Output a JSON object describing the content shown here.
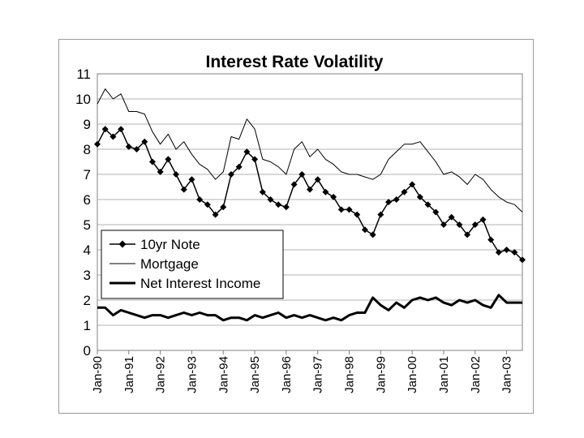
{
  "chart_data": {
    "type": "line",
    "title": "Interest Rate Volatility",
    "xlabel": "",
    "ylabel": "",
    "ylim": [
      0,
      11
    ],
    "yticks": [
      0,
      1,
      2,
      3,
      4,
      5,
      6,
      7,
      8,
      9,
      10,
      11
    ],
    "xlim": [
      1990.0,
      2003.5
    ],
    "xtick_labels": [
      "Jan-90",
      "Jan-91",
      "Jan-92",
      "Jan-93",
      "Jan-94",
      "Jan-95",
      "Jan-96",
      "Jan-97",
      "Jan-98",
      "Jan-99",
      "Jan-00",
      "Jan-01",
      "Jan-02",
      "Jan-03"
    ],
    "xtick_values": [
      1990,
      1991,
      1992,
      1993,
      1994,
      1995,
      1996,
      1997,
      1998,
      1999,
      2000,
      2001,
      2002,
      2003
    ],
    "grid": "horizontal",
    "legend_position": "lower-left",
    "series": [
      {
        "name": "10yr Note",
        "style": "line-with-diamond-markers",
        "color": "#000000",
        "points": [
          [
            1990.0,
            8.2
          ],
          [
            1990.25,
            8.8
          ],
          [
            1990.5,
            8.5
          ],
          [
            1990.75,
            8.8
          ],
          [
            1991.0,
            8.1
          ],
          [
            1991.25,
            8.0
          ],
          [
            1991.5,
            8.3
          ],
          [
            1991.75,
            7.5
          ],
          [
            1992.0,
            7.1
          ],
          [
            1992.25,
            7.6
          ],
          [
            1992.5,
            7.0
          ],
          [
            1992.75,
            6.4
          ],
          [
            1993.0,
            6.8
          ],
          [
            1993.25,
            6.0
          ],
          [
            1993.5,
            5.8
          ],
          [
            1993.75,
            5.4
          ],
          [
            1994.0,
            5.7
          ],
          [
            1994.25,
            7.0
          ],
          [
            1994.5,
            7.3
          ],
          [
            1994.75,
            7.9
          ],
          [
            1995.0,
            7.6
          ],
          [
            1995.25,
            6.3
          ],
          [
            1995.5,
            6.0
          ],
          [
            1995.75,
            5.8
          ],
          [
            1996.0,
            5.7
          ],
          [
            1996.25,
            6.6
          ],
          [
            1996.5,
            7.0
          ],
          [
            1996.75,
            6.4
          ],
          [
            1997.0,
            6.8
          ],
          [
            1997.25,
            6.3
          ],
          [
            1997.5,
            6.1
          ],
          [
            1997.75,
            5.6
          ],
          [
            1998.0,
            5.6
          ],
          [
            1998.25,
            5.4
          ],
          [
            1998.5,
            4.8
          ],
          [
            1998.75,
            4.6
          ],
          [
            1999.0,
            5.4
          ],
          [
            1999.25,
            5.9
          ],
          [
            1999.5,
            6.0
          ],
          [
            1999.75,
            6.3
          ],
          [
            2000.0,
            6.6
          ],
          [
            2000.25,
            6.1
          ],
          [
            2000.5,
            5.8
          ],
          [
            2000.75,
            5.5
          ],
          [
            2001.0,
            5.0
          ],
          [
            2001.25,
            5.3
          ],
          [
            2001.5,
            5.0
          ],
          [
            2001.75,
            4.6
          ],
          [
            2002.0,
            5.0
          ],
          [
            2002.25,
            5.2
          ],
          [
            2002.5,
            4.4
          ],
          [
            2002.75,
            3.9
          ],
          [
            2003.0,
            4.0
          ],
          [
            2003.25,
            3.9
          ],
          [
            2003.5,
            3.6
          ]
        ]
      },
      {
        "name": "Mortgage",
        "style": "thin-line",
        "color": "#000000",
        "points": [
          [
            1990.0,
            9.8
          ],
          [
            1990.25,
            10.4
          ],
          [
            1990.5,
            10.0
          ],
          [
            1990.75,
            10.2
          ],
          [
            1991.0,
            9.5
          ],
          [
            1991.25,
            9.5
          ],
          [
            1991.5,
            9.4
          ],
          [
            1991.75,
            8.7
          ],
          [
            1992.0,
            8.2
          ],
          [
            1992.25,
            8.6
          ],
          [
            1992.5,
            8.0
          ],
          [
            1992.75,
            8.3
          ],
          [
            1993.0,
            7.8
          ],
          [
            1993.25,
            7.4
          ],
          [
            1993.5,
            7.2
          ],
          [
            1993.75,
            6.8
          ],
          [
            1994.0,
            7.1
          ],
          [
            1994.25,
            8.5
          ],
          [
            1994.5,
            8.4
          ],
          [
            1994.75,
            9.2
          ],
          [
            1995.0,
            8.8
          ],
          [
            1995.25,
            7.6
          ],
          [
            1995.5,
            7.5
          ],
          [
            1995.75,
            7.3
          ],
          [
            1996.0,
            7.0
          ],
          [
            1996.25,
            8.0
          ],
          [
            1996.5,
            8.3
          ],
          [
            1996.75,
            7.7
          ],
          [
            1997.0,
            8.0
          ],
          [
            1997.25,
            7.6
          ],
          [
            1997.5,
            7.4
          ],
          [
            1997.75,
            7.1
          ],
          [
            1998.0,
            7.0
          ],
          [
            1998.25,
            7.0
          ],
          [
            1998.5,
            6.9
          ],
          [
            1998.75,
            6.8
          ],
          [
            1999.0,
            7.0
          ],
          [
            1999.25,
            7.6
          ],
          [
            1999.5,
            7.9
          ],
          [
            1999.75,
            8.2
          ],
          [
            2000.0,
            8.2
          ],
          [
            2000.25,
            8.3
          ],
          [
            2000.5,
            7.9
          ],
          [
            2000.75,
            7.5
          ],
          [
            2001.0,
            7.0
          ],
          [
            2001.25,
            7.1
          ],
          [
            2001.5,
            6.9
          ],
          [
            2001.75,
            6.6
          ],
          [
            2002.0,
            7.0
          ],
          [
            2002.25,
            6.8
          ],
          [
            2002.5,
            6.4
          ],
          [
            2002.75,
            6.1
          ],
          [
            2003.0,
            5.9
          ],
          [
            2003.25,
            5.8
          ],
          [
            2003.5,
            5.5
          ]
        ]
      },
      {
        "name": "Net Interest Income",
        "style": "thick-line",
        "color": "#000000",
        "points": [
          [
            1990.0,
            1.7
          ],
          [
            1990.25,
            1.7
          ],
          [
            1990.5,
            1.4
          ],
          [
            1990.75,
            1.6
          ],
          [
            1991.0,
            1.5
          ],
          [
            1991.25,
            1.4
          ],
          [
            1991.5,
            1.3
          ],
          [
            1991.75,
            1.4
          ],
          [
            1992.0,
            1.4
          ],
          [
            1992.25,
            1.3
          ],
          [
            1992.5,
            1.4
          ],
          [
            1992.75,
            1.5
          ],
          [
            1993.0,
            1.4
          ],
          [
            1993.25,
            1.5
          ],
          [
            1993.5,
            1.4
          ],
          [
            1993.75,
            1.4
          ],
          [
            1994.0,
            1.2
          ],
          [
            1994.25,
            1.3
          ],
          [
            1994.5,
            1.3
          ],
          [
            1994.75,
            1.2
          ],
          [
            1995.0,
            1.4
          ],
          [
            1995.25,
            1.3
          ],
          [
            1995.5,
            1.4
          ],
          [
            1995.75,
            1.5
          ],
          [
            1996.0,
            1.3
          ],
          [
            1996.25,
            1.4
          ],
          [
            1996.5,
            1.3
          ],
          [
            1996.75,
            1.4
          ],
          [
            1997.0,
            1.3
          ],
          [
            1997.25,
            1.2
          ],
          [
            1997.5,
            1.3
          ],
          [
            1997.75,
            1.2
          ],
          [
            1998.0,
            1.4
          ],
          [
            1998.25,
            1.5
          ],
          [
            1998.5,
            1.5
          ],
          [
            1998.75,
            2.1
          ],
          [
            1999.0,
            1.8
          ],
          [
            1999.25,
            1.6
          ],
          [
            1999.5,
            1.9
          ],
          [
            1999.75,
            1.7
          ],
          [
            2000.0,
            2.0
          ],
          [
            2000.25,
            2.1
          ],
          [
            2000.5,
            2.0
          ],
          [
            2000.75,
            2.1
          ],
          [
            2001.0,
            1.9
          ],
          [
            2001.25,
            1.8
          ],
          [
            2001.5,
            2.0
          ],
          [
            2001.75,
            1.9
          ],
          [
            2002.0,
            2.0
          ],
          [
            2002.25,
            1.8
          ],
          [
            2002.5,
            1.7
          ],
          [
            2002.75,
            2.2
          ],
          [
            2003.0,
            1.9
          ],
          [
            2003.25,
            1.9
          ],
          [
            2003.5,
            1.9
          ]
        ]
      }
    ]
  }
}
